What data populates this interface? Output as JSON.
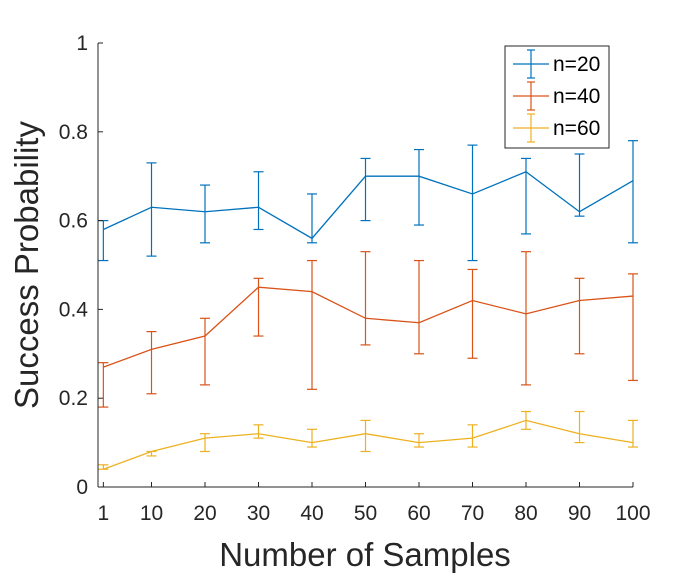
{
  "chart_data": {
    "type": "line",
    "title": "",
    "xlabel": "Number of Samples",
    "ylabel": "Success Probability",
    "x": [
      1,
      10,
      20,
      30,
      40,
      50,
      60,
      70,
      80,
      90,
      100
    ],
    "xticks": [
      "1",
      "10",
      "20",
      "30",
      "40",
      "50",
      "60",
      "70",
      "80",
      "90",
      "100"
    ],
    "xlim": [
      0,
      100
    ],
    "yticks": [
      "0",
      "0.2",
      "0.4",
      "0.6",
      "0.8",
      "1"
    ],
    "ylim": [
      0,
      1
    ],
    "grid": false,
    "legend_location": "top-right",
    "series": [
      {
        "name": "n=20",
        "color": "#0072BD",
        "values": [
          0.58,
          0.63,
          0.62,
          0.63,
          0.56,
          0.7,
          0.7,
          0.66,
          0.71,
          0.62,
          0.69
        ],
        "err_low": [
          0.51,
          0.52,
          0.55,
          0.58,
          0.55,
          0.6,
          0.59,
          0.51,
          0.57,
          0.61,
          0.55
        ],
        "err_high": [
          0.6,
          0.73,
          0.68,
          0.71,
          0.66,
          0.74,
          0.76,
          0.77,
          0.74,
          0.75,
          0.78
        ]
      },
      {
        "name": "n=40",
        "color": "#D95319",
        "values": [
          0.27,
          0.31,
          0.34,
          0.45,
          0.44,
          0.38,
          0.37,
          0.42,
          0.39,
          0.42,
          0.43
        ],
        "err_low": [
          0.18,
          0.21,
          0.23,
          0.34,
          0.22,
          0.32,
          0.3,
          0.29,
          0.23,
          0.3,
          0.24
        ],
        "err_high": [
          0.28,
          0.35,
          0.38,
          0.47,
          0.51,
          0.53,
          0.51,
          0.49,
          0.53,
          0.47,
          0.48
        ]
      },
      {
        "name": "n=60",
        "color": "#EDB120",
        "values": [
          0.04,
          0.08,
          0.11,
          0.12,
          0.1,
          0.12,
          0.1,
          0.11,
          0.15,
          0.12,
          0.1
        ],
        "err_low": [
          0.04,
          0.07,
          0.08,
          0.11,
          0.09,
          0.08,
          0.09,
          0.09,
          0.13,
          0.1,
          0.09
        ],
        "err_high": [
          0.05,
          0.08,
          0.12,
          0.14,
          0.13,
          0.15,
          0.12,
          0.14,
          0.17,
          0.17,
          0.15
        ]
      }
    ]
  }
}
